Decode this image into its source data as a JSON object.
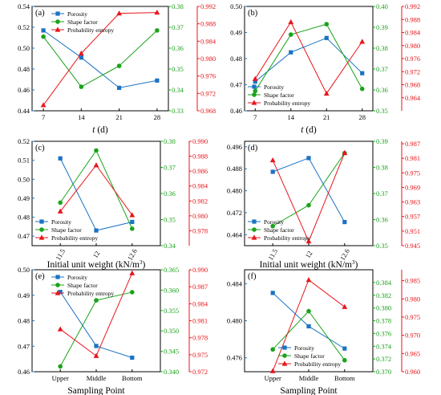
{
  "colors": {
    "porosity": "#1a73c4",
    "shape": "#1aa31a",
    "entropy": "#e8151b",
    "axis": "#000000"
  },
  "chart_data": [
    {
      "label": "(a)",
      "type": "line",
      "x": [
        "7",
        "14",
        "21",
        "28"
      ],
      "xlabel_italic": "t",
      "xlabel_unit": " (d)",
      "y1": {
        "min": 0.44,
        "max": 0.54,
        "ticks": [
          "0.44",
          "0.46",
          "0.48",
          "0.50",
          "0.52",
          "0.54"
        ]
      },
      "y2": {
        "min": 0.33,
        "max": 0.38,
        "ticks": [
          "0.33",
          "0.34",
          "0.35",
          "0.36",
          "0.37",
          "0.38"
        ]
      },
      "y3": {
        "min": 0.968,
        "max": 0.992,
        "ticks": [
          "0.968",
          "0.972",
          "0.976",
          "0.980",
          "0.984",
          "0.988",
          "0.992"
        ]
      },
      "legend_pos": "top-left",
      "series": [
        {
          "name": "Porosity",
          "axis": "y1",
          "marker": "square",
          "values": [
            0.517,
            0.491,
            0.462,
            0.469
          ]
        },
        {
          "name": "Shape factor",
          "axis": "y2",
          "marker": "circle",
          "values": [
            0.3655,
            0.3415,
            0.3515,
            0.3685
          ]
        },
        {
          "name": "Probability entropy",
          "axis": "y3",
          "marker": "triangle",
          "values": [
            0.9693,
            0.9812,
            0.9904,
            0.9906
          ]
        }
      ]
    },
    {
      "label": "(b)",
      "type": "line",
      "x": [
        "7",
        "14",
        "21",
        "28"
      ],
      "xlabel_italic": "t",
      "xlabel_unit": " (d)",
      "y1": {
        "min": 0.46,
        "max": 0.5,
        "ticks": [
          "0.46",
          "0.47",
          "0.48",
          "0.49",
          "0.50"
        ]
      },
      "y2": {
        "min": 0.35,
        "max": 0.4,
        "ticks": [
          "0.35",
          "0.36",
          "0.37",
          "0.38",
          "0.39",
          "0.40"
        ]
      },
      "y3": {
        "min": 0.96,
        "max": 0.992,
        "ticks": [
          "0.964",
          "0.968",
          "0.972",
          "0.976",
          "0.980",
          "0.984",
          "0.988",
          "0.992"
        ]
      },
      "legend_pos": "bottom-left",
      "series": [
        {
          "name": "Porosity",
          "axis": "y1",
          "marker": "square",
          "values": [
            0.4712,
            0.4824,
            0.4879,
            0.4744
          ]
        },
        {
          "name": "Shape factor",
          "axis": "y2",
          "marker": "circle",
          "values": [
            0.3595,
            0.3865,
            0.3915,
            0.3605
          ]
        },
        {
          "name": "Probability entropy",
          "axis": "y3",
          "marker": "triangle",
          "values": [
            0.9698,
            0.9872,
            0.9653,
            0.9812
          ]
        }
      ]
    },
    {
      "label": "(c)",
      "type": "line",
      "x": [
        "11.5",
        "12",
        "12.6"
      ],
      "x_rotate": true,
      "xlabel_text": "Initial unit weight (kN/m",
      "xlabel_sup": "3",
      "xlabel_end": ")",
      "y1": {
        "min": 0.465,
        "max": 0.52,
        "ticks": [
          "0.47",
          "0.48",
          "0.49",
          "0.50",
          "0.51",
          "0.52"
        ]
      },
      "y2": {
        "min": 0.34,
        "max": 0.38,
        "ticks": [
          "0.34",
          "0.35",
          "0.36",
          "0.37",
          "0.38"
        ]
      },
      "y3": {
        "min": 0.976,
        "max": 0.99,
        "ticks": [
          "0.978",
          "0.980",
          "0.982",
          "0.984",
          "0.986",
          "0.988",
          "0.990"
        ]
      },
      "legend_pos": "bottom-left",
      "series": [
        {
          "name": "Porosity",
          "axis": "y1",
          "marker": "square",
          "values": [
            0.511,
            0.473,
            0.4775
          ]
        },
        {
          "name": "Shape factor",
          "axis": "y2",
          "marker": "circle",
          "values": [
            0.3565,
            0.3765,
            0.3465
          ]
        },
        {
          "name": "Probability entropy",
          "axis": "y3",
          "marker": "triangle",
          "values": [
            0.9806,
            0.9868,
            0.9801
          ]
        }
      ]
    },
    {
      "label": "(d)",
      "type": "line",
      "x": [
        "11.5",
        "12",
        "12.6"
      ],
      "x_rotate": true,
      "xlabel_text": "Initial unit weight (kN/m",
      "xlabel_sup": "3",
      "xlabel_end": ")",
      "y1": {
        "min": 0.46,
        "max": 0.498,
        "ticks": [
          "0.464",
          "0.472",
          "0.480",
          "0.488",
          "0.496"
        ]
      },
      "y2": {
        "min": 0.35,
        "max": 0.39,
        "ticks": [
          "0.35",
          "0.36",
          "0.37",
          "0.38",
          "0.39"
        ]
      },
      "y3": {
        "min": 0.945,
        "max": 0.988,
        "ticks": [
          "0.945",
          "0.951",
          "0.957",
          "0.963",
          "0.969",
          "0.975",
          "0.981",
          "0.987"
        ]
      },
      "legend_pos": "bottom-left",
      "series": [
        {
          "name": "Porosity",
          "axis": "y1",
          "marker": "square",
          "values": [
            0.4869,
            0.4919,
            0.4686
          ]
        },
        {
          "name": "Shape factor",
          "axis": "y2",
          "marker": "circle",
          "values": [
            0.3575,
            0.3655,
            0.3855
          ]
        },
        {
          "name": "Probability entropy",
          "axis": "y3",
          "marker": "triangle",
          "values": [
            0.9802,
            0.9468,
            0.9832
          ]
        }
      ]
    },
    {
      "label": "(e)",
      "type": "line",
      "x": [
        "Upper",
        "Middle",
        "Bottom"
      ],
      "xlabel_text": "Sampling Point",
      "y1": {
        "min": 0.46,
        "max": 0.5,
        "ticks": [
          "0.46",
          "0.47",
          "0.48",
          "0.49",
          "0.50"
        ]
      },
      "y2": {
        "min": 0.34,
        "max": 0.365,
        "ticks": [
          "0.340",
          "0.345",
          "0.350",
          "0.355",
          "0.360",
          "0.365"
        ]
      },
      "y3": {
        "min": 0.972,
        "max": 0.99,
        "ticks": [
          "0.972",
          "0.975",
          "0.978",
          "0.981",
          "0.984",
          "0.987",
          "0.990"
        ]
      },
      "legend_pos": "top-left",
      "series": [
        {
          "name": "Porosity",
          "axis": "y1",
          "marker": "square",
          "values": [
            0.4913,
            0.4701,
            0.4655
          ]
        },
        {
          "name": "Shape factor",
          "axis": "y2",
          "marker": "circle",
          "values": [
            0.3413,
            0.3575,
            0.3595
          ]
        },
        {
          "name": "Probability entropy",
          "axis": "y3",
          "marker": "triangle",
          "values": [
            0.9795,
            0.9748,
            0.9894
          ]
        }
      ]
    },
    {
      "label": "(f)",
      "type": "line",
      "x": [
        "Upper",
        "Middle",
        "Bottom"
      ],
      "xlabel_text": "Sampling Point",
      "y1": {
        "min": 0.4745,
        "max": 0.4855,
        "ticks": [
          "0.476",
          "0.480",
          "0.484"
        ]
      },
      "y2": {
        "min": 0.37,
        "max": 0.386,
        "ticks": [
          "0.370",
          "0.372",
          "0.374",
          "0.376",
          "0.378",
          "0.380",
          "0.382",
          "0.384"
        ]
      },
      "y3": {
        "min": 0.96,
        "max": 0.988,
        "ticks": [
          "0.960",
          "0.965",
          "0.970",
          "0.975",
          "0.980",
          "0.985"
        ]
      },
      "legend_pos": "bottom-center",
      "series": [
        {
          "name": "Porosity",
          "axis": "y1",
          "marker": "square",
          "values": [
            0.483,
            0.4794,
            0.477
          ]
        },
        {
          "name": "Shape factor",
          "axis": "y2",
          "marker": "circle",
          "values": [
            0.3735,
            0.3795,
            0.3718
          ]
        },
        {
          "name": "Probability entropy",
          "axis": "y3",
          "marker": "triangle",
          "values": [
            0.9602,
            0.9852,
            0.9778
          ]
        }
      ]
    }
  ]
}
